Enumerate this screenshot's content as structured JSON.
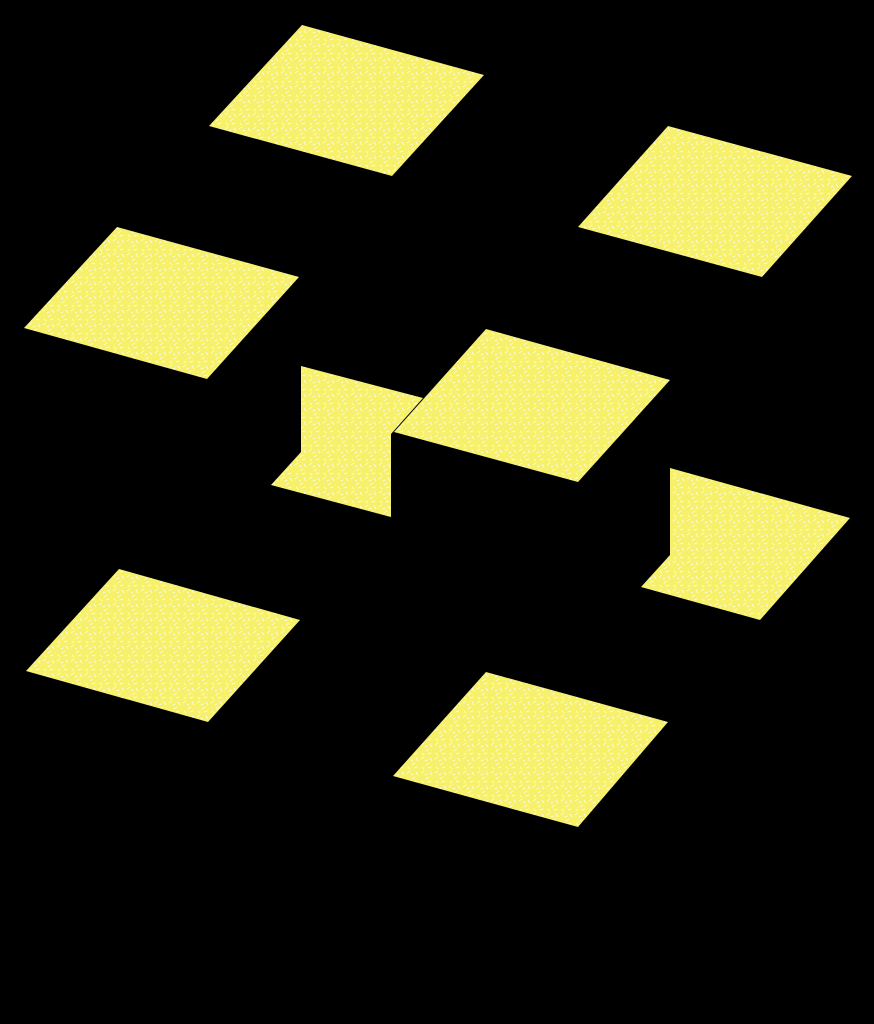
{
  "scene": {
    "background_color": "#000000",
    "tile_color": "#f6f06a",
    "texture_color": "#ffffff",
    "tile_count": 8
  }
}
